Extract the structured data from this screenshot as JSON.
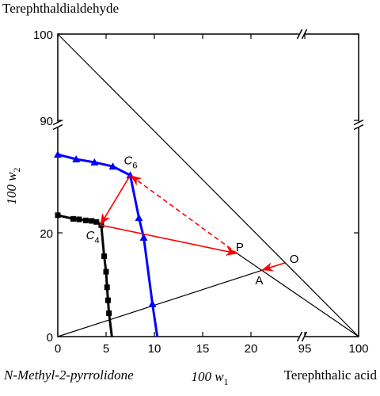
{
  "chart_data": {
    "type": "ternary-line",
    "corner_top": "Terephthaldialdehyde",
    "corner_left": "N-Methyl-2-pyrrolidone",
    "corner_right": "Terephthalic acid",
    "x_label": {
      "text": "100 w",
      "sub": "1"
    },
    "y_label": {
      "text": "100 w",
      "sub": "2"
    },
    "xlim": [
      0,
      100
    ],
    "ylim": [
      0,
      100
    ],
    "x_break": [
      25,
      95
    ],
    "y_break": [
      40,
      90
    ],
    "xticks": [
      0,
      5,
      10,
      15,
      20,
      95,
      100
    ],
    "yticks": [
      0,
      20,
      90,
      100
    ],
    "series": [
      {
        "color": "#000000",
        "marker": "square",
        "x": [
          0,
          1.6,
          2.2,
          2.9,
          3.5,
          4.0,
          4.5,
          4.8,
          5.0,
          5.1,
          5.2,
          5.3,
          5.6
        ],
        "y": [
          23.4,
          22.7,
          22.6,
          22.4,
          22.3,
          22.1,
          21.5,
          15.5,
          12.5,
          9.5,
          7.0,
          4.5,
          0
        ]
      },
      {
        "color": "#0000ff",
        "marker": "triangle",
        "x": [
          0,
          1.9,
          3.8,
          5.7,
          7.5,
          8.4,
          8.9,
          9.8,
          10.3
        ],
        "y": [
          35.1,
          34.2,
          33.6,
          32.8,
          31.1,
          22.9,
          19.1,
          6.3,
          0
        ]
      }
    ],
    "points": [
      {
        "label": "C",
        "sub": "4",
        "x": 4.4,
        "y": 21.5
      },
      {
        "label": "C",
        "sub": "6",
        "x": 7.5,
        "y": 31.1
      },
      {
        "label": "P",
        "x": 18.6,
        "y": 16.0
      },
      {
        "label": "O",
        "x": 23.5,
        "y": 14.2
      },
      {
        "label": "A",
        "x": 21.1,
        "y": 12.8
      }
    ],
    "arrow_color": "#ff0000"
  }
}
